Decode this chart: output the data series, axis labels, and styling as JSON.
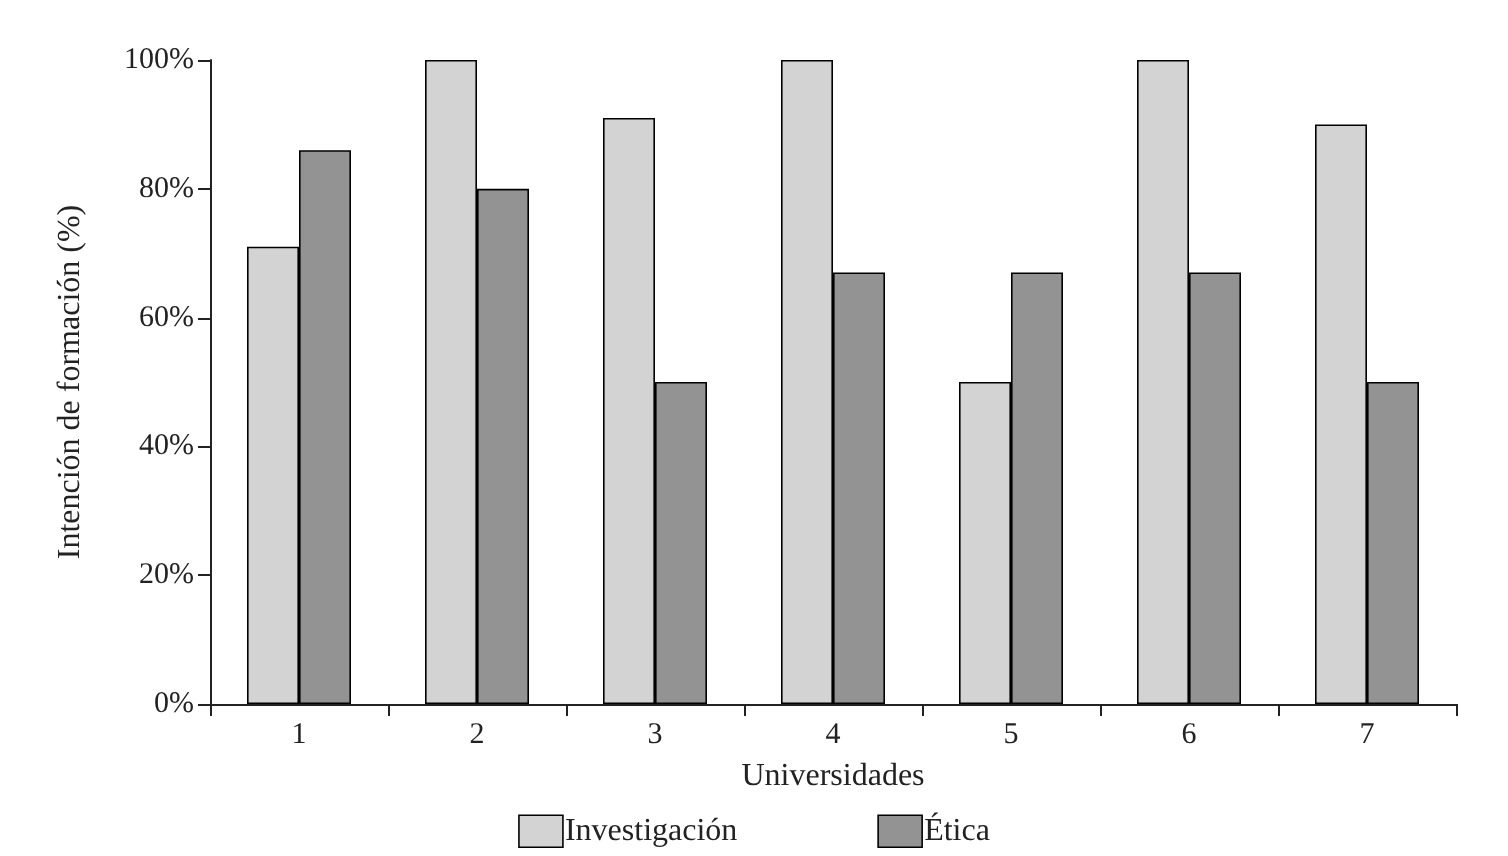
{
  "chart_data": {
    "type": "bar",
    "xlabel": "Universidades",
    "ylabel": "Intención de formación (%)",
    "categories": [
      "1",
      "2",
      "3",
      "4",
      "5",
      "6",
      "7"
    ],
    "series": [
      {
        "name": "Investigación",
        "color": "#d3d3d3",
        "values": [
          71,
          100,
          91,
          100,
          50,
          100,
          90
        ]
      },
      {
        "name": "Ética",
        "color": "#939393",
        "values": [
          86,
          80,
          50,
          67,
          67,
          67,
          50
        ]
      }
    ],
    "ylim": [
      0,
      100
    ],
    "yticks": [
      {
        "value": 0,
        "label": "0%"
      },
      {
        "value": 20,
        "label": "20%"
      },
      {
        "value": 40,
        "label": "40%"
      },
      {
        "value": 60,
        "label": "60%"
      },
      {
        "value": 80,
        "label": "80%"
      },
      {
        "value": 100,
        "label": "100%"
      }
    ],
    "grid": false,
    "legend": "bottom"
  }
}
